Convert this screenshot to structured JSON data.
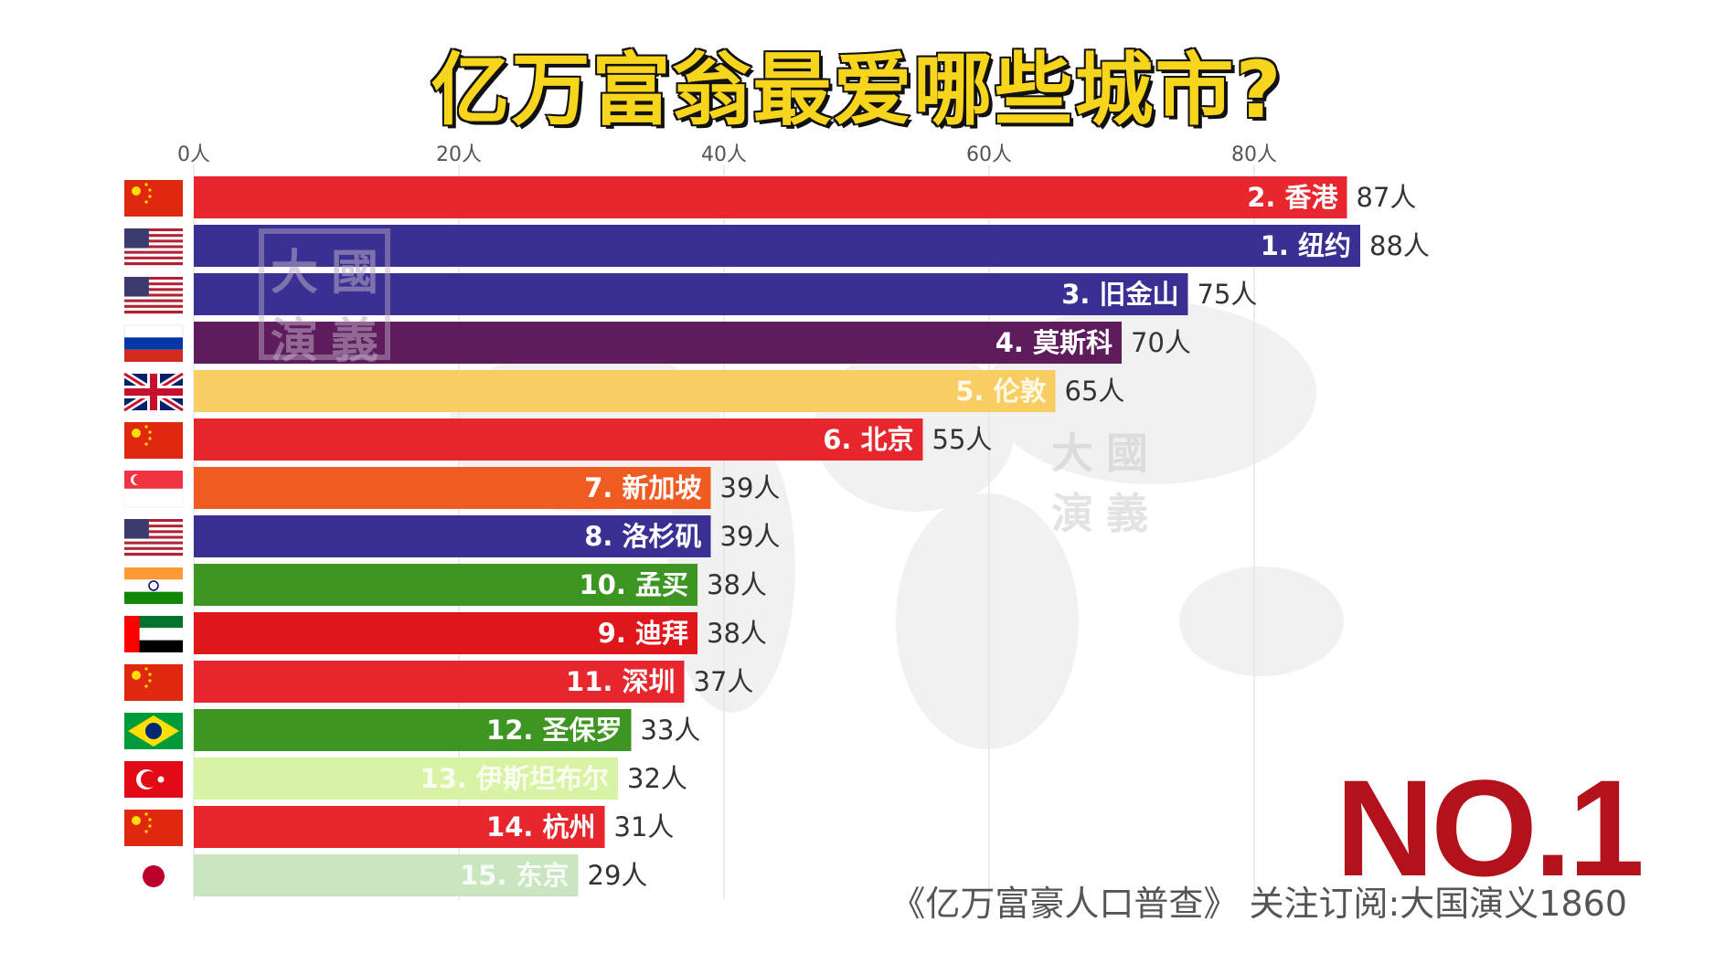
{
  "title": "亿万富翁最爱哪些城市?",
  "stamp_chars": [
    "大",
    "國",
    "演",
    "義"
  ],
  "rank_badge": "NO.1",
  "footer_text": "《亿万富豪人口普查》 关注订阅:大国演义1860",
  "chart_data": {
    "type": "bar",
    "orientation": "horizontal",
    "title": "亿万富翁最爱哪些城市?",
    "value_suffix": "人",
    "xlim": [
      0,
      90
    ],
    "x_ticks": [
      0,
      20,
      40,
      60,
      80
    ],
    "x_tick_labels": [
      "0人",
      "20人",
      "40人",
      "60人",
      "80人"
    ],
    "grid": true,
    "categories": [
      "2. 香港",
      "1. 纽约",
      "3. 旧金山",
      "4. 莫斯科",
      "5. 伦敦",
      "6. 北京",
      "7. 新加坡",
      "8. 洛杉矶",
      "10. 孟买",
      "9. 迪拜",
      "11. 深圳",
      "12. 圣保罗",
      "13. 伊斯坦布尔",
      "14. 杭州",
      "15. 东京"
    ],
    "values": [
      87,
      88,
      75,
      70,
      65,
      55,
      39,
      39,
      38,
      38,
      37,
      33,
      32,
      31,
      29
    ],
    "value_labels": [
      "87人",
      "88人",
      "75人",
      "70人",
      "65人",
      "55人",
      "39人",
      "39人",
      "38人",
      "38人",
      "37人",
      "33人",
      "32人",
      "31人",
      "29人"
    ],
    "bar_colors": [
      "#e8262e",
      "#3a2f93",
      "#3a2f93",
      "#5f1c5c",
      "#f8cd62",
      "#e8262e",
      "#f05b22",
      "#3a2f93",
      "#3d9622",
      "#e0161b",
      "#e8262e",
      "#3d9622",
      "#d9f3a4",
      "#e8262e",
      "#c9e6c0"
    ],
    "flags": [
      "china-flag",
      "usa-flag",
      "usa-flag",
      "russia-flag",
      "uk-flag",
      "china-flag",
      "singapore-flag",
      "usa-flag",
      "india-flag",
      "uae-flag",
      "china-flag",
      "brazil-flag",
      "turkey-flag",
      "china-flag",
      "japan-flag"
    ]
  }
}
